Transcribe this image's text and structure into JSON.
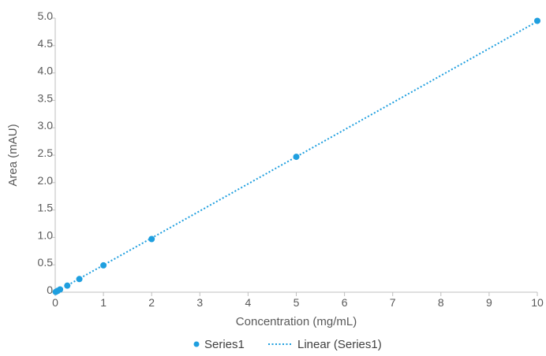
{
  "chart_data": {
    "type": "scatter",
    "title": "",
    "xlabel": "Concentration (mg/mL)",
    "ylabel": "Area (mAU)",
    "xlim": [
      0,
      10
    ],
    "ylim": [
      0,
      5.0
    ],
    "x_ticks": [
      "0",
      "1",
      "2",
      "3",
      "4",
      "5",
      "6",
      "7",
      "8",
      "9",
      "10"
    ],
    "y_ticks": [
      "0",
      "0.5",
      "1.0",
      "1.5",
      "2.0",
      "2.5",
      "3.0",
      "3.5",
      "4.0",
      "4.5",
      "5.0"
    ],
    "grid": false,
    "legend_position": "bottom",
    "series": [
      {
        "name": "Series1",
        "color": "#1f9fdf",
        "x": [
          0.01,
          0.05,
          0.1,
          0.25,
          0.5,
          1,
          2,
          5,
          10
        ],
        "y": [
          0.005,
          0.025,
          0.05,
          0.12,
          0.24,
          0.49,
          0.97,
          2.47,
          4.95
        ]
      }
    ],
    "trendline": {
      "name": "Linear (Series1)",
      "type": "linear",
      "color": "#1f9fdf",
      "dashed": "dotted",
      "slope": 0.494,
      "intercept": 0.0
    }
  }
}
